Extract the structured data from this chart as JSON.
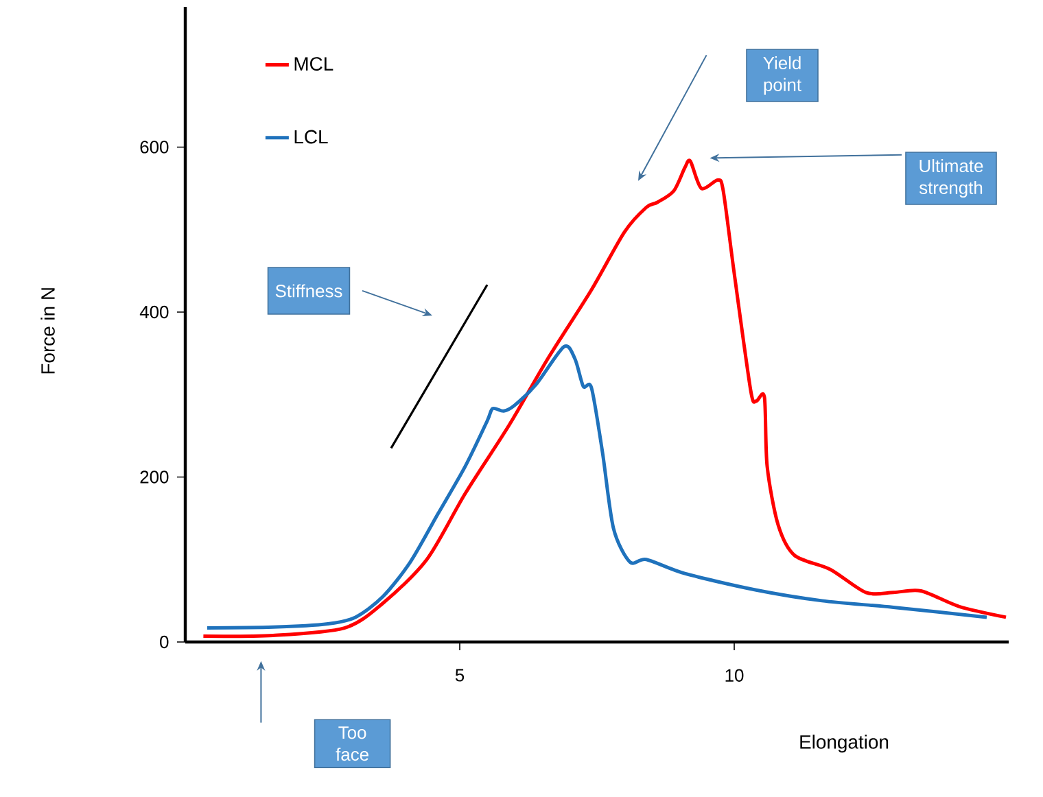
{
  "chart_data": {
    "type": "line",
    "xlabel": "Elongation",
    "ylabel": "Force in N",
    "xlim": [
      0,
      15
    ],
    "ylim": [
      0,
      770
    ],
    "xticks": [
      5,
      10
    ],
    "yticks": [
      0,
      200,
      400,
      600
    ],
    "legend": "top left",
    "marker": "none",
    "line_style": "solid",
    "series": [
      {
        "name": "MCL",
        "color": "#ff0000",
        "x": [
          0.33,
          1.6,
          2.9,
          3.6,
          4.4,
          5.1,
          5.9,
          6.6,
          7.4,
          8,
          8.4,
          8.6,
          8.9,
          9.1,
          9.2,
          9.4,
          9.7,
          9.8,
          10,
          10.3,
          10.4,
          10.55,
          10.6,
          10.8,
          11.1,
          11.75,
          12.4,
          12.9,
          13.4,
          14.1,
          14.95
        ],
        "values": [
          7,
          8,
          17,
          47,
          100,
          180,
          263,
          343,
          427,
          497,
          527,
          533,
          547,
          575,
          583,
          550,
          560,
          547,
          447,
          305,
          292,
          297,
          213,
          142,
          105,
          88,
          60,
          60,
          62,
          43,
          30
        ]
      },
      {
        "name": "LCL",
        "color": "#1f72bc",
        "x": [
          0.4,
          1.6,
          2.6,
          3.1,
          3.6,
          4.1,
          4.6,
          5.1,
          5.5,
          5.6,
          5.8,
          6,
          6.4,
          6.9,
          7.1,
          7.25,
          7.4,
          7.6,
          7.8,
          8.1,
          8.4,
          9.1,
          10.4,
          11.6,
          12.9,
          14.6
        ],
        "values": [
          17,
          18,
          22,
          30,
          55,
          97,
          155,
          213,
          268,
          283,
          280,
          287,
          313,
          358,
          343,
          310,
          308,
          230,
          138,
          97,
          100,
          83,
          63,
          50,
          42,
          30
        ]
      },
      {
        "type": "line",
        "color": "#000000",
        "x": [
          3.75,
          5.5
        ],
        "values": [
          235,
          433
        ]
      }
    ],
    "annotations": [
      "Yield point",
      "Ultimate strength",
      "Stiffness",
      "Too face"
    ]
  }
}
